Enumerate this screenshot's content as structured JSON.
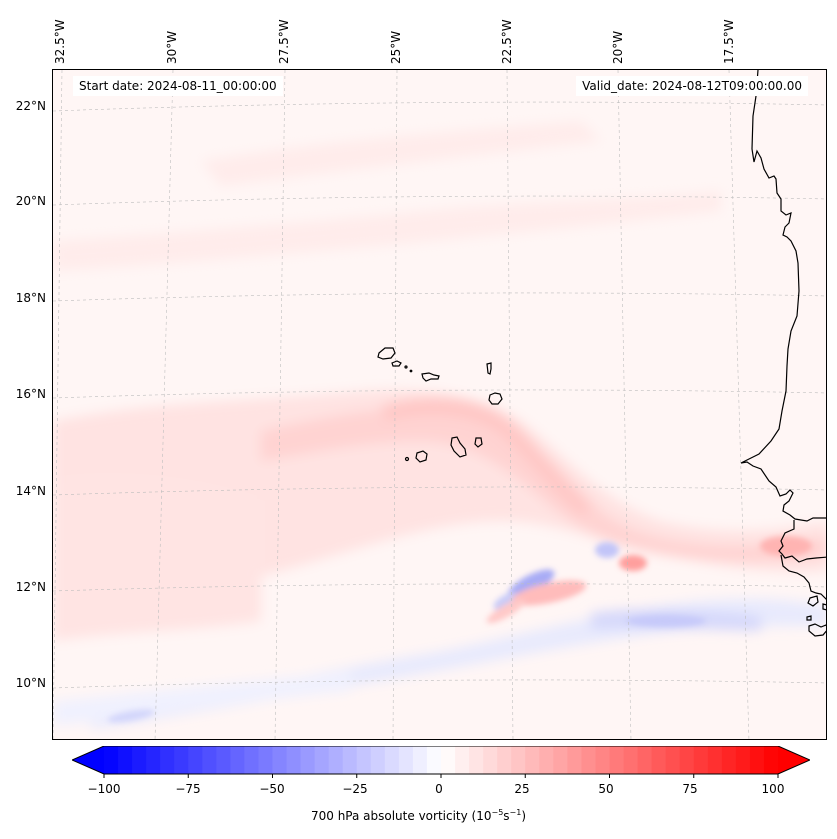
{
  "map": {
    "title_left": "Start date: 2024-08-11_00:00:00",
    "title_right": "Valid_date: 2024-08-12T09:00:00.00",
    "variable": "700 hPa absolute vorticity",
    "units_base": "10",
    "units_exp1": "−5",
    "units_s": "s",
    "units_exp2": "−1",
    "lon_labels": [
      "32.5°W",
      "30°W",
      "27.5°W",
      "25°W",
      "22.5°W",
      "20°W",
      "17.5°W"
    ],
    "lat_labels": [
      "22°N",
      "20°N",
      "18°N",
      "16°N",
      "14°N",
      "12°N",
      "10°N"
    ],
    "features": [
      "Cape Verde Islands",
      "West African coastline (Mauritania, Senegal, Guinea-Bissau)"
    ]
  },
  "colorbar": {
    "label_prefix": "700 hPa absolute vorticity (10",
    "label_exp1": "−5",
    "label_mid": "s",
    "label_exp2": "−1",
    "label_suffix": ")",
    "ticks": [
      "−100",
      "−75",
      "−50",
      "−25",
      "0",
      "25",
      "50",
      "75",
      "100"
    ],
    "min": -100,
    "max": 100,
    "extend": "both",
    "colormap": "bwr",
    "low_color": "#0000ff",
    "mid_color": "#ffffff",
    "high_color": "#ff0000"
  }
}
